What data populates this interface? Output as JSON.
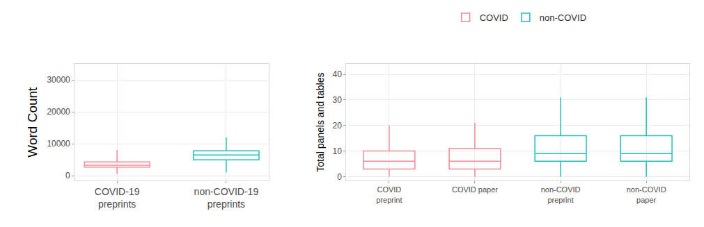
{
  "chart_data": [
    {
      "type": "box",
      "y_label": "Word Count",
      "categories": [
        "COVID-19\npreprints",
        "non-COVID-19\npreprints"
      ],
      "colors": [
        "#f08a94",
        "#1fbfb8"
      ],
      "boxes": [
        {
          "lowerfence": 500,
          "q1": 2700,
          "median": 3300,
          "q3": 4300,
          "upperfence": 8000
        },
        {
          "lowerfence": 1000,
          "q1": 5000,
          "median": 6500,
          "q3": 7800,
          "upperfence": 12000
        }
      ],
      "ylim": [
        -1500,
        35000
      ],
      "yticks": [
        0,
        10000,
        20000,
        30000
      ],
      "grid": true
    },
    {
      "type": "box",
      "y_label": "Total panels and tables",
      "categories": [
        "COVID\npreprint",
        "COVID paper",
        "non-COVID\npreprint",
        "non-COVID\npaper"
      ],
      "series": [
        {
          "name": "COVID",
          "color": "#f08a94",
          "boxes": [
            {
              "lowerfence": 0,
              "q1": 3,
              "median": 6,
              "q3": 10,
              "upperfence": 20
            },
            {
              "lowerfence": 0,
              "q1": 3,
              "median": 6,
              "q3": 11,
              "upperfence": 21
            },
            null,
            null
          ]
        },
        {
          "name": "non-COVID",
          "color": "#1fbfb8",
          "boxes": [
            null,
            null,
            {
              "lowerfence": 0,
              "q1": 6,
              "median": 9,
              "q3": 16,
              "upperfence": 31
            },
            {
              "lowerfence": 0,
              "q1": 6,
              "median": 9,
              "q3": 16,
              "upperfence": 31
            }
          ]
        }
      ],
      "legend": "top",
      "ylim": [
        -1.5,
        44
      ],
      "yticks": [
        0,
        10,
        20,
        30,
        40
      ],
      "grid": true
    }
  ]
}
